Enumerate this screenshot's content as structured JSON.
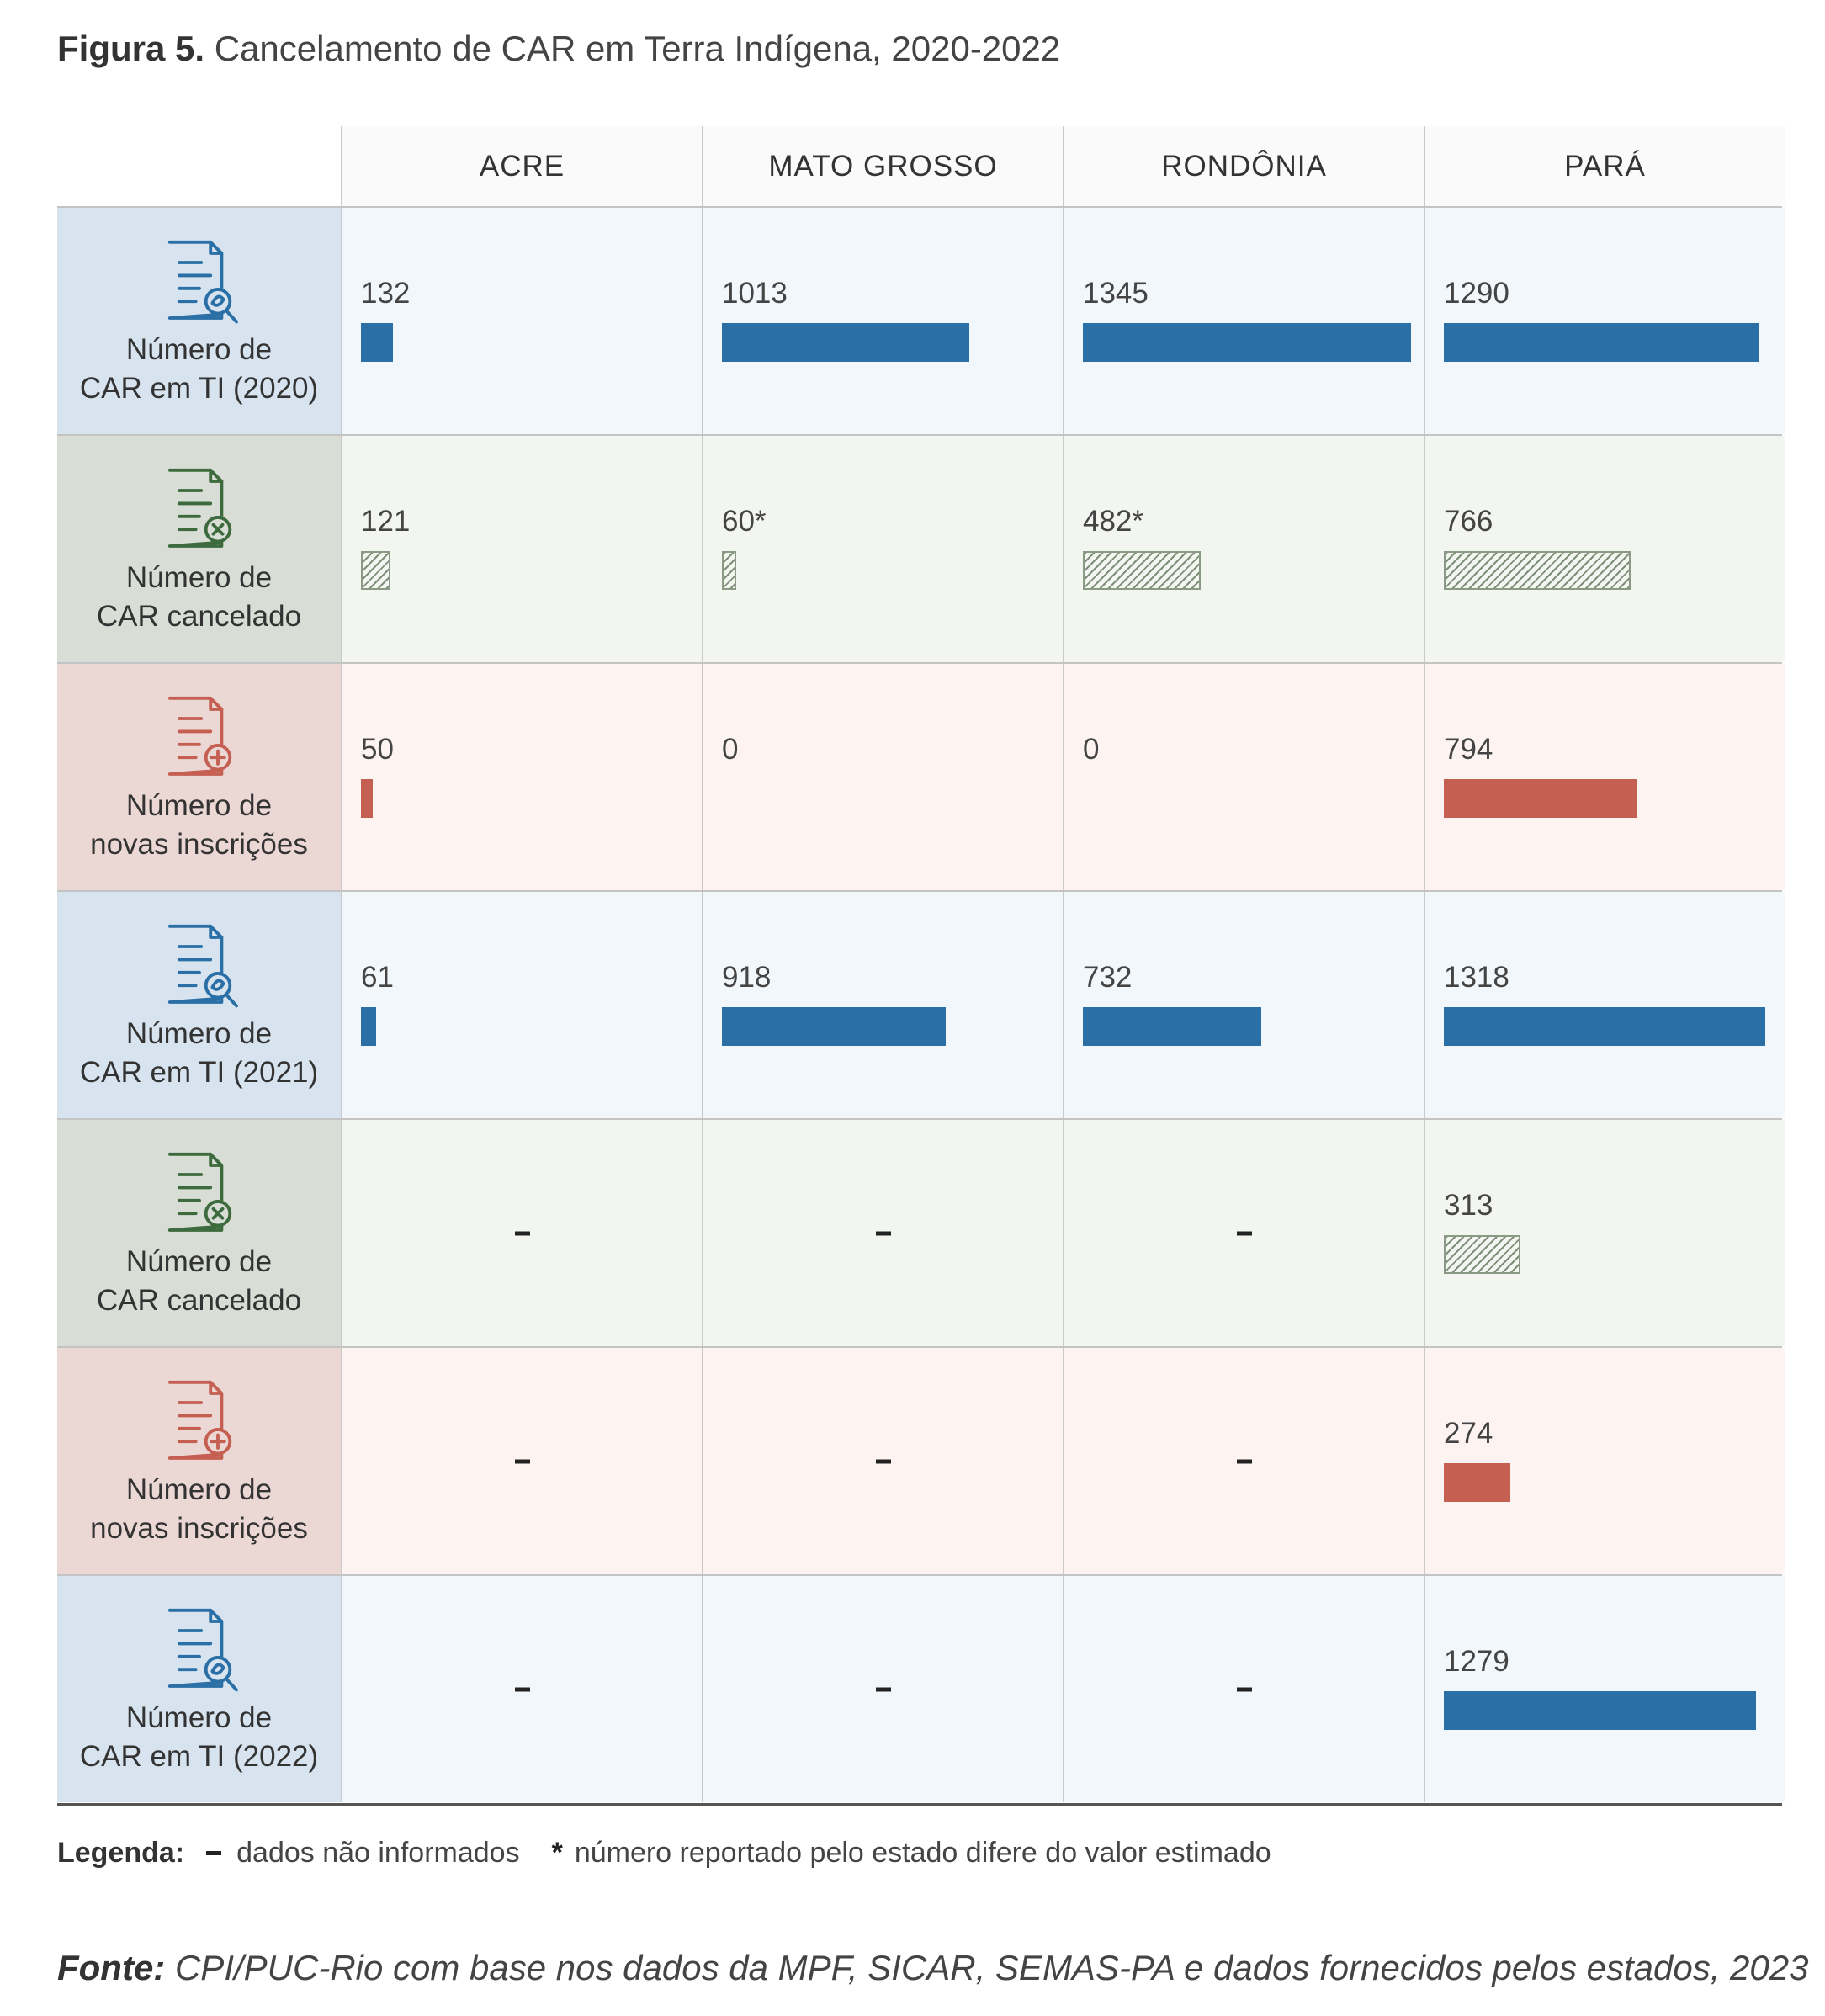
{
  "title": {
    "label": "Figura 5.",
    "text": "Cancelamento de CAR em Terra Indígena, 2020-2022"
  },
  "colors": {
    "blue": "#2a6fa6",
    "red": "#c45f52",
    "green_icon": "#3d6b3d",
    "hatch": "#7f8f7a"
  },
  "chart_data": {
    "type": "table",
    "columns": [
      "ACRE",
      "MATO GROSSO",
      "RONDÔNIA",
      "PARÁ"
    ],
    "scale_max": 1345,
    "rows": [
      {
        "kind": "blue",
        "icon": "document-search-icon",
        "label": [
          "Número de",
          "CAR em TI (2020)"
        ],
        "cells": [
          {
            "value": 132,
            "text": "132"
          },
          {
            "value": 1013,
            "text": "1013"
          },
          {
            "value": 1345,
            "text": "1345"
          },
          {
            "value": 1290,
            "text": "1290"
          }
        ]
      },
      {
        "kind": "green",
        "icon": "document-cancel-icon",
        "label": [
          "Número de",
          "CAR cancelado"
        ],
        "cells": [
          {
            "value": 121,
            "text": "121"
          },
          {
            "value": 60,
            "text": "60*"
          },
          {
            "value": 482,
            "text": "482*"
          },
          {
            "value": 766,
            "text": "766"
          }
        ]
      },
      {
        "kind": "red",
        "icon": "document-add-icon",
        "label": [
          "Número de",
          "novas inscrições"
        ],
        "cells": [
          {
            "value": 50,
            "text": "50"
          },
          {
            "value": 0,
            "text": "0"
          },
          {
            "value": 0,
            "text": "0"
          },
          {
            "value": 794,
            "text": "794"
          }
        ]
      },
      {
        "kind": "blue",
        "icon": "document-search-icon",
        "label": [
          "Número de",
          "CAR em TI (2021)"
        ],
        "cells": [
          {
            "value": 61,
            "text": "61"
          },
          {
            "value": 918,
            "text": "918"
          },
          {
            "value": 732,
            "text": "732"
          },
          {
            "value": 1318,
            "text": "1318"
          }
        ]
      },
      {
        "kind": "green",
        "icon": "document-cancel-icon",
        "label": [
          "Número de",
          "CAR cancelado"
        ],
        "cells": [
          null,
          null,
          null,
          {
            "value": 313,
            "text": "313"
          }
        ]
      },
      {
        "kind": "red",
        "icon": "document-add-icon",
        "label": [
          "Número de",
          "novas inscrições"
        ],
        "cells": [
          null,
          null,
          null,
          {
            "value": 274,
            "text": "274"
          }
        ]
      },
      {
        "kind": "blue",
        "icon": "document-search-icon",
        "label": [
          "Número de",
          "CAR em TI (2022)"
        ],
        "cells": [
          null,
          null,
          null,
          {
            "value": 1279,
            "text": "1279"
          }
        ]
      }
    ]
  },
  "legend": {
    "label": "Legenda:",
    "dash_text": "dados não informados",
    "star": "*",
    "star_text": "número reportado pelo estado difere do valor estimado"
  },
  "source": {
    "label": "Fonte:",
    "text": "CPI/PUC-Rio com base nos dados da MPF, SICAR, SEMAS-PA e dados fornecidos pelos estados, 2023"
  }
}
